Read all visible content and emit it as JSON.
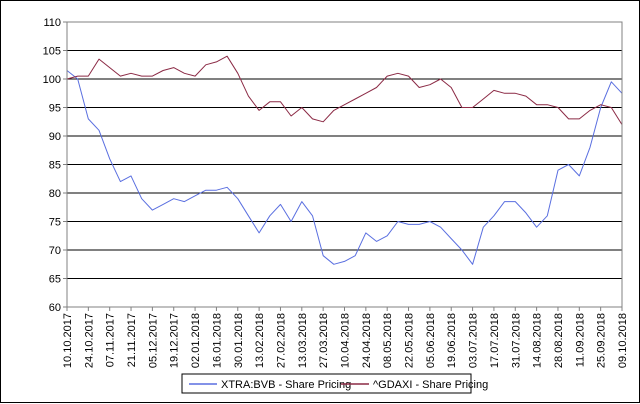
{
  "chart_data": {
    "type": "line",
    "title": "",
    "xlabel": "",
    "ylabel": "",
    "ylim": [
      60,
      110
    ],
    "y_ticks": [
      60,
      65,
      70,
      75,
      80,
      85,
      90,
      95,
      100,
      105,
      110
    ],
    "x_tick_labels": [
      "10.10.2017",
      "24.10.2017",
      "07.11.2017",
      "21.11.2017",
      "05.12.2017",
      "19.12.2017",
      "02.01.2018",
      "16.01.2018",
      "30.01.2018",
      "13.02.2018",
      "27.02.2018",
      "13.03.2018",
      "27.03.2018",
      "10.04.2018",
      "24.04.2018",
      "08.05.2018",
      "22.05.2018",
      "05.06.2018",
      "19.06.2018",
      "03.07.2018",
      "17.07.2018",
      "31.07.2018",
      "14.08.2018",
      "28.08.2018",
      "11.09.2018",
      "25.09.2018",
      "09.10.2018"
    ],
    "grid": "horizontal",
    "legend_position": "bottom",
    "colors": {
      "series_1": "#5a6fe0",
      "series_2": "#8b2a45"
    },
    "series": [
      {
        "name": "XTRA:BVB - Share Pricing",
        "x": [
          "10.10.2017",
          "17.10.2017",
          "24.10.2017",
          "31.10.2017",
          "07.11.2017",
          "14.11.2017",
          "21.11.2017",
          "28.11.2017",
          "05.12.2017",
          "12.12.2017",
          "19.12.2017",
          "26.12.2017",
          "02.01.2018",
          "09.01.2018",
          "16.01.2018",
          "23.01.2018",
          "30.01.2018",
          "06.02.2018",
          "13.02.2018",
          "20.02.2018",
          "27.02.2018",
          "06.03.2018",
          "13.03.2018",
          "20.03.2018",
          "27.03.2018",
          "03.04.2018",
          "10.04.2018",
          "17.04.2018",
          "24.04.2018",
          "01.05.2018",
          "08.05.2018",
          "15.05.2018",
          "22.05.2018",
          "29.05.2018",
          "05.06.2018",
          "12.06.2018",
          "19.06.2018",
          "26.06.2018",
          "03.07.2018",
          "10.07.2018",
          "17.07.2018",
          "24.07.2018",
          "31.07.2018",
          "07.08.2018",
          "14.08.2018",
          "21.08.2018",
          "28.08.2018",
          "04.09.2018",
          "11.09.2018",
          "18.09.2018",
          "25.09.2018",
          "02.10.2018",
          "09.10.2018"
        ],
        "values": [
          101.5,
          100,
          93,
          91,
          86,
          82,
          83,
          79,
          77,
          78,
          79,
          78.5,
          79.5,
          80.5,
          80.5,
          81,
          79,
          76,
          73,
          76,
          78,
          75,
          78.5,
          76,
          69,
          67.5,
          68,
          69,
          73,
          71.5,
          72.5,
          75,
          74.5,
          74.5,
          75,
          74,
          72,
          70,
          67.5,
          74,
          76,
          78.5,
          78.5,
          76.5,
          74,
          76,
          84,
          85,
          83,
          88,
          95,
          99.5,
          97.5
        ]
      },
      {
        "name": "^GDAXI - Share Pricing",
        "x": [
          "10.10.2017",
          "17.10.2017",
          "24.10.2017",
          "31.10.2017",
          "07.11.2017",
          "14.11.2017",
          "21.11.2017",
          "28.11.2017",
          "05.12.2017",
          "12.12.2017",
          "19.12.2017",
          "26.12.2017",
          "02.01.2018",
          "09.01.2018",
          "16.01.2018",
          "23.01.2018",
          "30.01.2018",
          "06.02.2018",
          "13.02.2018",
          "20.02.2018",
          "27.02.2018",
          "06.03.2018",
          "13.03.2018",
          "20.03.2018",
          "27.03.2018",
          "03.04.2018",
          "10.04.2018",
          "17.04.2018",
          "24.04.2018",
          "01.05.2018",
          "08.05.2018",
          "15.05.2018",
          "22.05.2018",
          "29.05.2018",
          "05.06.2018",
          "12.06.2018",
          "19.06.2018",
          "26.06.2018",
          "03.07.2018",
          "10.07.2018",
          "17.07.2018",
          "24.07.2018",
          "31.07.2018",
          "07.08.2018",
          "14.08.2018",
          "21.08.2018",
          "28.08.2018",
          "04.09.2018",
          "11.09.2018",
          "18.09.2018",
          "25.09.2018",
          "02.10.2018",
          "09.10.2018"
        ],
        "values": [
          100,
          100.5,
          100.5,
          103.5,
          102,
          100.5,
          101,
          100.5,
          100.5,
          101.5,
          102,
          101,
          100.5,
          102.5,
          103,
          104,
          101,
          97,
          94.5,
          96,
          96,
          93.5,
          95,
          93,
          92.5,
          94.5,
          95.5,
          96.5,
          97.5,
          98.5,
          100.5,
          101,
          100.5,
          98.5,
          99,
          100,
          98.5,
          95,
          95,
          96.5,
          98,
          97.5,
          97.5,
          97,
          95.5,
          95.5,
          95,
          93,
          93,
          94.5,
          95.5,
          95,
          92
        ]
      }
    ]
  }
}
